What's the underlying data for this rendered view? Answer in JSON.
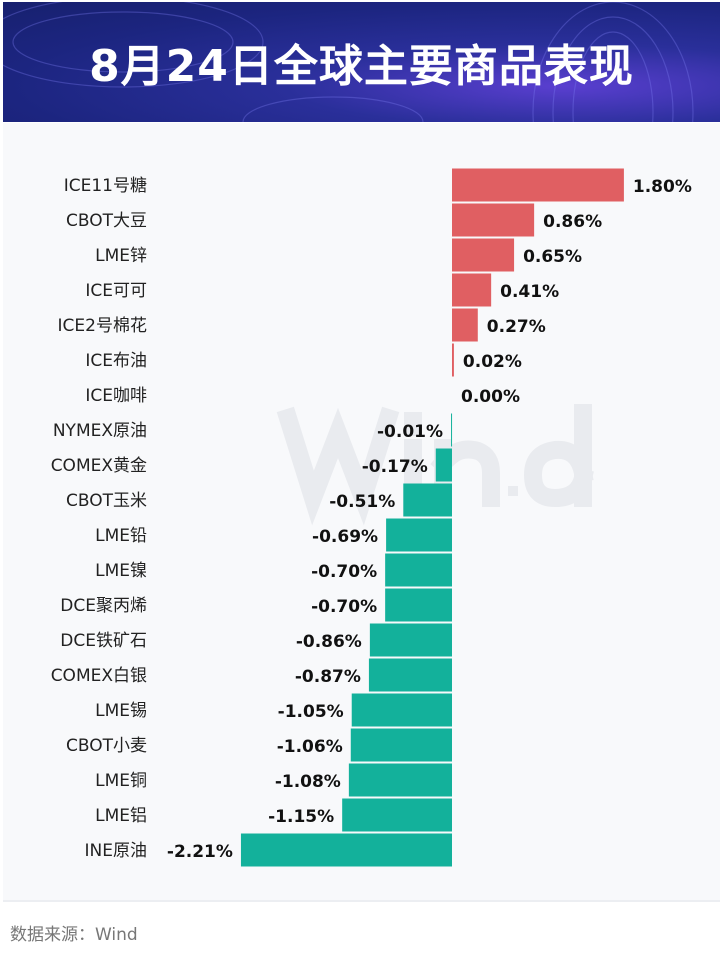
{
  "header": {
    "title": "8月24日全球主要商品表现"
  },
  "watermark": "Wind",
  "source": "数据来源：Wind",
  "colors": {
    "positive": "#e05f62",
    "negative": "#13b19b",
    "header_bg": "#1e2785"
  },
  "chart_data": {
    "type": "bar",
    "orientation": "horizontal",
    "unit": "%",
    "categories": [
      "ICE11号糖",
      "CBOT大豆",
      "LME锌",
      "ICE可可",
      "ICE2号棉花",
      "ICE布油",
      "ICE咖啡",
      "NYMEX原油",
      "COMEX黄金",
      "CBOT玉米",
      "LME铅",
      "LME镍",
      "DCE聚丙烯",
      "DCE铁矿石",
      "COMEX白银",
      "LME锡",
      "CBOT小麦",
      "LME铜",
      "LME铝",
      "INE原油"
    ],
    "values": [
      1.8,
      0.86,
      0.65,
      0.41,
      0.27,
      0.02,
      0.0,
      -0.01,
      -0.17,
      -0.51,
      -0.69,
      -0.7,
      -0.7,
      -0.86,
      -0.87,
      -1.05,
      -1.06,
      -1.08,
      -1.15,
      -2.21
    ],
    "labels": [
      "1.80%",
      "0.86%",
      "0.65%",
      "0.41%",
      "0.27%",
      "0.02%",
      "0.00%",
      "-0.01%",
      "-0.17%",
      "-0.51%",
      "-0.69%",
      "-0.70%",
      "-0.70%",
      "-0.86%",
      "-0.87%",
      "-1.05%",
      "-1.06%",
      "-1.08%",
      "-1.15%",
      "-2.21%"
    ],
    "grid": false,
    "legend": "none"
  }
}
